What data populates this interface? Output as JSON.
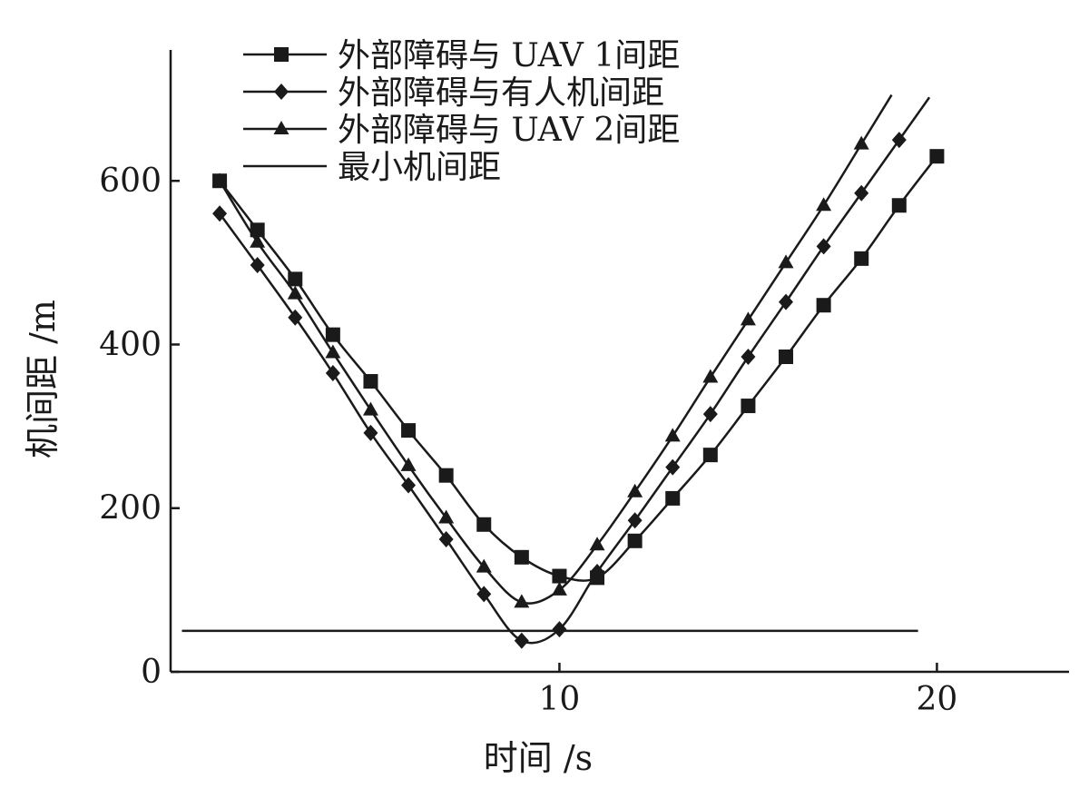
{
  "chart_data": {
    "type": "line",
    "xlabel": "时间 /s",
    "ylabel": "机间距 /m",
    "xlim": [
      -0.3,
      23.5
    ],
    "ylim": [
      0,
      760
    ],
    "x_ticks": [
      10,
      20
    ],
    "y_ticks": [
      0,
      200,
      400,
      600
    ],
    "grid": false,
    "legend_position": "top-left",
    "line_color": "#1a1a1a",
    "series": [
      {
        "name": "外部障碍与 UAV 1间距",
        "marker": "square",
        "x": [
          1,
          2,
          3,
          4,
          5,
          6,
          7,
          8,
          9,
          10,
          11,
          12,
          13,
          14,
          15,
          16,
          17,
          18,
          19,
          20
        ],
        "y": [
          600,
          540,
          480,
          412,
          355,
          295,
          240,
          180,
          140,
          117,
          115,
          160,
          212,
          265,
          325,
          385,
          448,
          505,
          570,
          630
        ]
      },
      {
        "name": "外部障碍与有人机间距",
        "marker": "diamond",
        "x": [
          1,
          2,
          3,
          4,
          5,
          6,
          7,
          8,
          9,
          10,
          11,
          12,
          13,
          14,
          15,
          16,
          17,
          18,
          19
        ],
        "y": [
          560,
          497,
          433,
          365,
          292,
          228,
          162,
          95,
          38,
          52,
          122,
          185,
          250,
          315,
          385,
          452,
          520,
          585,
          650
        ]
      },
      {
        "name": "外部障碍与 UAV 2间距",
        "marker": "triangle",
        "x": [
          1,
          2,
          3,
          4,
          5,
          6,
          7,
          8,
          9,
          10,
          11,
          12,
          13,
          14,
          15,
          16,
          17,
          18
        ],
        "y": [
          600,
          525,
          462,
          390,
          320,
          252,
          188,
          128,
          85,
          100,
          155,
          220,
          288,
          360,
          430,
          500,
          570,
          645
        ]
      },
      {
        "name": "最小机间距",
        "marker": "none",
        "x": [
          0,
          19.5
        ],
        "y": [
          50,
          50
        ]
      }
    ]
  }
}
